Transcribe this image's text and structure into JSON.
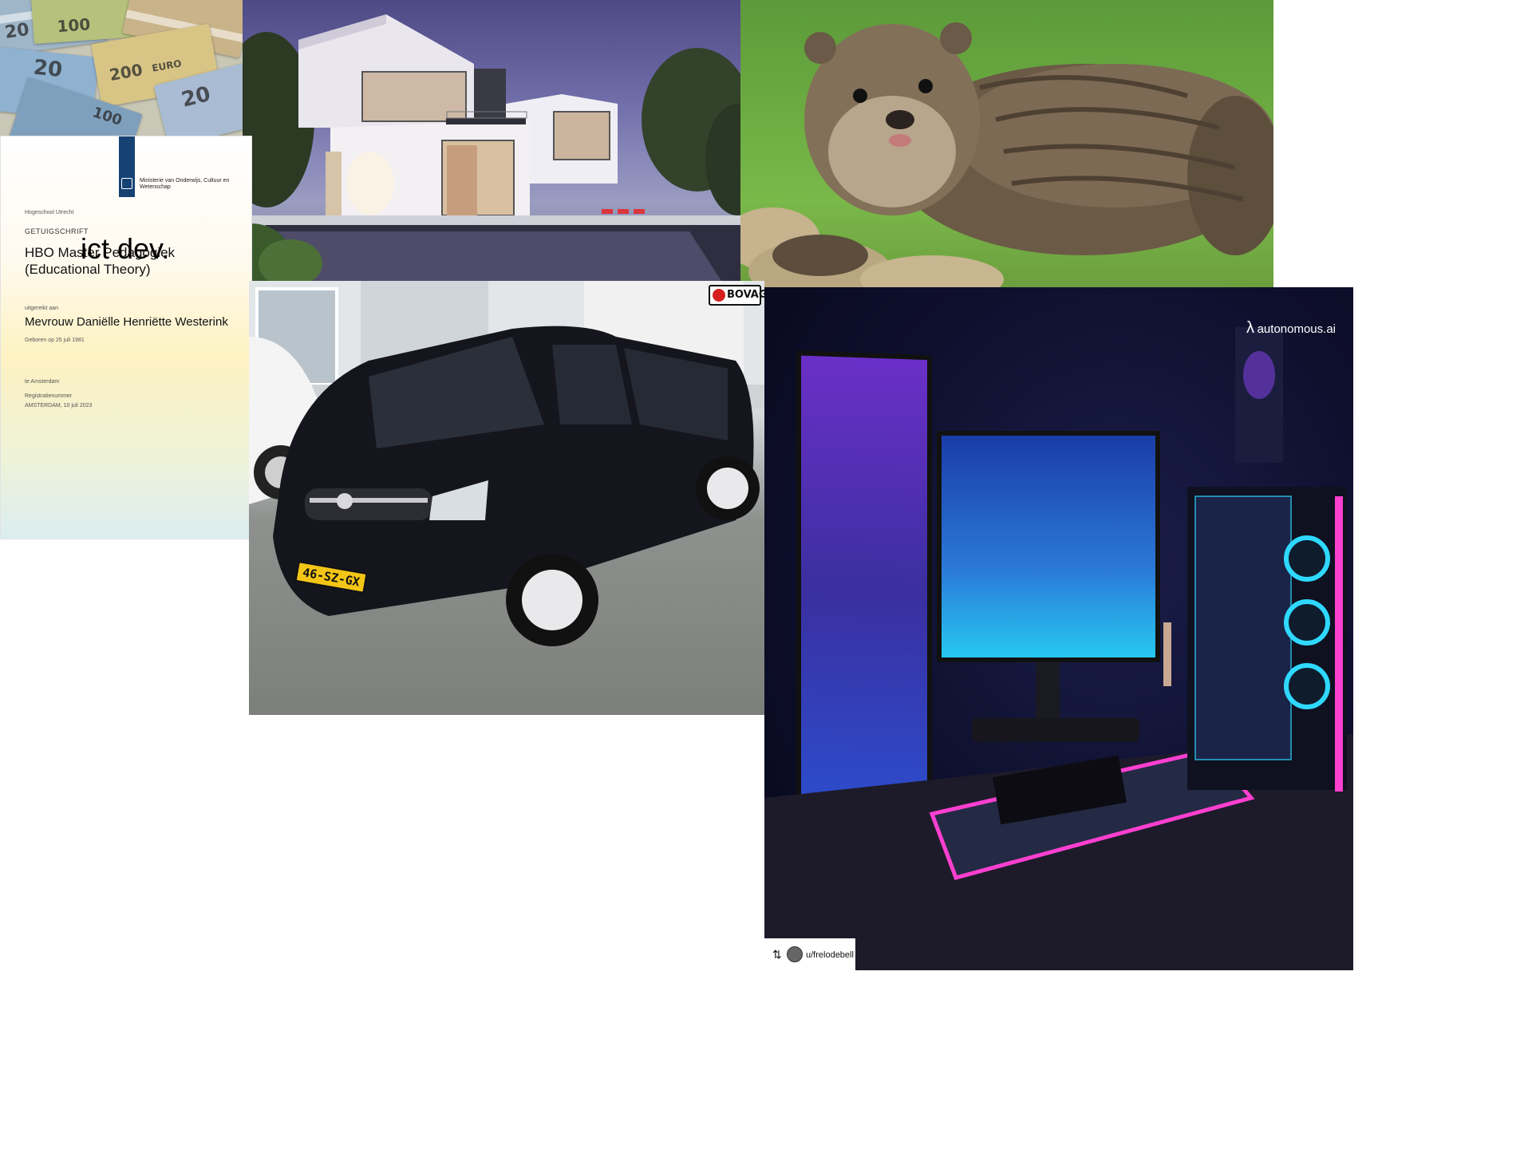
{
  "money": {
    "notes": [
      {
        "value": "20"
      },
      {
        "value": "100"
      },
      {
        "value": "20"
      },
      {
        "value": "200"
      },
      {
        "value": "20"
      },
      {
        "value": "100"
      }
    ],
    "note_text": "EURO"
  },
  "certificate": {
    "ministry": "Ministerie van Onderwijs, Cultuur en Wetenschap",
    "institution_label": "Hogeschool Utrecht",
    "heading": "GETUIGSCHRIFT",
    "title": "HBO Master Pedagogiek (Educational Theory)",
    "holder_label": "uitgereikt aan",
    "holder": "Mevrouw Daniëlle Henriëtte Westerink",
    "dob": "Geboren op 25 juli 1981",
    "place_label": "te Amsterdam",
    "register_label": "Registratienummer",
    "issued": "AMSTERDAM, 10 juli 2023",
    "overlay_text": "ict dev."
  },
  "car": {
    "plate": "46-SZ-GX",
    "dealer_badge": "BOVAG"
  },
  "setup": {
    "brand": "autonomous.ai",
    "brand_symbol": "λ",
    "credit_icon": "retweet-icon",
    "credit_user": "u/frelodebell"
  },
  "colors": {
    "cert_blue": "#154273",
    "plate_yellow": "#f3c516",
    "neon_pink": "#ff3fd0",
    "neon_cyan": "#2fd8ff"
  }
}
